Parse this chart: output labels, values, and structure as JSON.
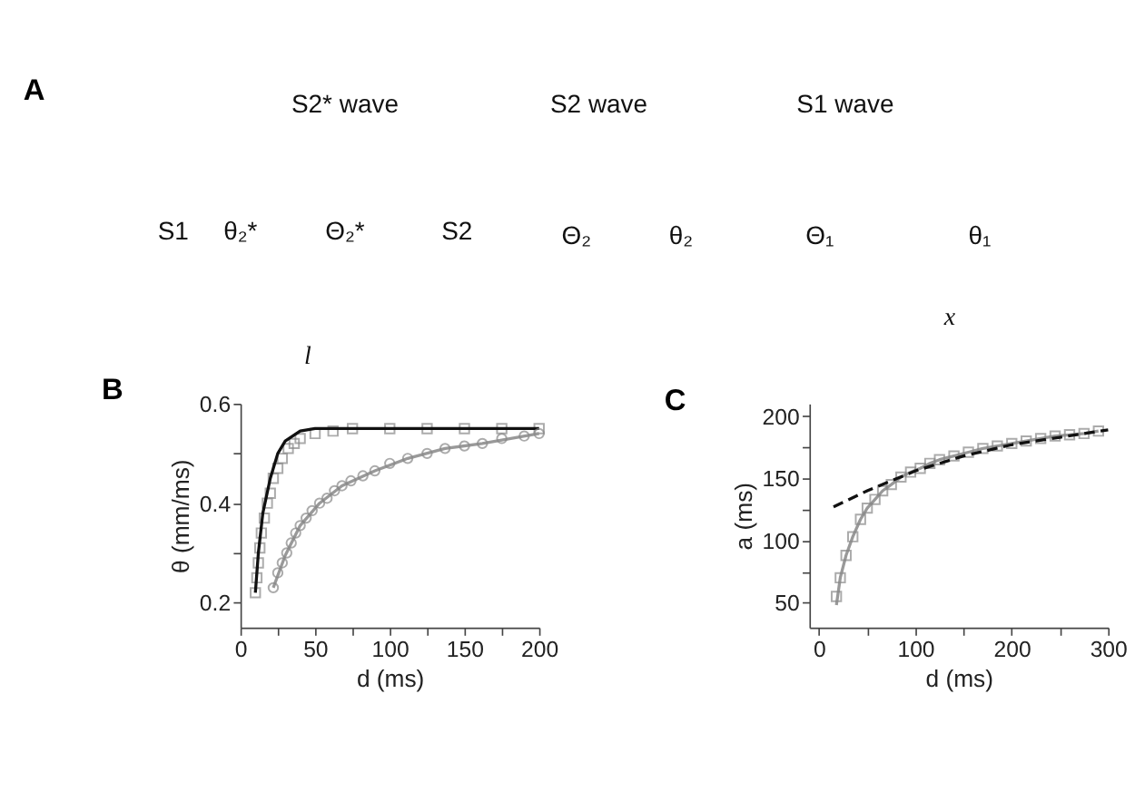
{
  "chart_data": [
    {
      "type": "other",
      "title": "A",
      "annotations": [
        "S2* wave",
        "S2 wave",
        "S1 wave",
        "S1",
        "θ₂*",
        "Θ₂*",
        "S2",
        "Θ₂",
        "θ₂",
        "Θ₁",
        "θ₁",
        "x",
        "l"
      ]
    },
    {
      "type": "scatter",
      "title": "B",
      "xlabel": "d (ms)",
      "ylabel": "θ (mm/ms)",
      "xlim": [
        0,
        200
      ],
      "xticks": [
        0,
        {
          "value": 25,
          "label": null
        },
        50,
        {
          "value": 75,
          "label": null
        },
        100,
        {
          "value": 125,
          "label": null
        },
        150,
        {
          "value": 175,
          "label": null
        },
        200
      ],
      "ylim": [
        0.15,
        0.6
      ],
      "yticks": [
        0.2,
        {
          "value": 0.3,
          "label": null
        },
        0.4,
        {
          "value": 0.5,
          "label": null
        },
        0.6
      ],
      "grid": false,
      "series": [
        {
          "type": "scatter",
          "marker": "square",
          "color": "#888888",
          "x": [
            10,
            11,
            12,
            13,
            14,
            16,
            18,
            20,
            22,
            25,
            28,
            32,
            36,
            40,
            50,
            62,
            75,
            100,
            125,
            150,
            175,
            200
          ],
          "values": [
            0.22,
            0.25,
            0.28,
            0.31,
            0.34,
            0.37,
            0.4,
            0.42,
            0.45,
            0.47,
            0.49,
            0.51,
            0.52,
            0.53,
            0.54,
            0.545,
            0.55,
            0.55,
            0.55,
            0.55,
            0.55,
            0.55
          ]
        },
        {
          "type": "line",
          "line_style": "solid",
          "color": "#111111",
          "x": [
            10,
            12,
            15,
            20,
            25,
            30,
            40,
            50,
            200
          ],
          "values": [
            0.22,
            0.3,
            0.38,
            0.45,
            0.5,
            0.525,
            0.545,
            0.55,
            0.55
          ]
        },
        {
          "type": "line",
          "line_style": "solid",
          "color": "#999999",
          "x": [
            22,
            30,
            40,
            53,
            68,
            90,
            112,
            137,
            162,
            200
          ],
          "values": [
            0.23,
            0.295,
            0.355,
            0.4,
            0.435,
            0.465,
            0.49,
            0.51,
            0.52,
            0.54
          ]
        },
        {
          "type": "scatter",
          "marker": "circle",
          "color": "#888888",
          "x": [
            22,
            25,
            28,
            31,
            34,
            37,
            40,
            44,
            48,
            53,
            58,
            63,
            68,
            74,
            82,
            90,
            100,
            112,
            125,
            137,
            150,
            162,
            175,
            190,
            200
          ],
          "values": [
            0.23,
            0.26,
            0.28,
            0.3,
            0.32,
            0.34,
            0.355,
            0.37,
            0.385,
            0.4,
            0.41,
            0.425,
            0.435,
            0.445,
            0.455,
            0.465,
            0.48,
            0.49,
            0.5,
            0.51,
            0.515,
            0.52,
            0.53,
            0.535,
            0.54
          ]
        }
      ]
    },
    {
      "type": "scatter",
      "title": "C",
      "xlabel": "d (ms)",
      "ylabel": "a (ms)",
      "xlim": [
        -10,
        300
      ],
      "xticks": [
        0,
        {
          "value": 50,
          "label": null
        },
        100,
        {
          "value": 150,
          "label": null
        },
        200,
        {
          "value": 250,
          "label": null
        },
        300
      ],
      "ylim": [
        30,
        210
      ],
      "yticks": [
        50,
        {
          "value": 75,
          "label": null
        },
        100,
        {
          "value": 125,
          "label": null
        },
        150,
        {
          "value": 175,
          "label": null
        },
        200
      ],
      "grid": false,
      "series": [
        {
          "type": "line",
          "line_style": "solid",
          "color": "#999999",
          "x": [
            18,
            22,
            28,
            35,
            43,
            50,
            58,
            66,
            75,
            85,
            95,
            105,
            115,
            125,
            140,
            155,
            170,
            185,
            200,
            215,
            230,
            245,
            260,
            275,
            290
          ],
          "values": [
            48,
            70,
            88,
            103,
            117,
            126,
            133,
            140,
            145,
            151,
            155,
            158,
            162,
            165,
            168,
            171,
            174,
            176,
            178,
            180,
            182,
            184,
            185,
            186,
            188
          ]
        },
        {
          "type": "scatter",
          "marker": "square",
          "color": "#888888",
          "x": [
            18,
            22,
            28,
            35,
            43,
            50,
            58,
            66,
            75,
            85,
            95,
            105,
            115,
            125,
            140,
            155,
            170,
            185,
            200,
            215,
            230,
            245,
            260,
            275,
            290
          ],
          "values": [
            55,
            70,
            88,
            103,
            117,
            126,
            133,
            140,
            145,
            151,
            155,
            158,
            162,
            165,
            168,
            171,
            174,
            176,
            178,
            180,
            182,
            184,
            185,
            186,
            188
          ]
        },
        {
          "type": "line",
          "line_style": "dashed",
          "color": "#111111",
          "x": [
            15,
            50,
            100,
            150,
            200,
            250,
            300
          ],
          "values": [
            127,
            140,
            156,
            168,
            177,
            183,
            189
          ]
        }
      ]
    }
  ]
}
